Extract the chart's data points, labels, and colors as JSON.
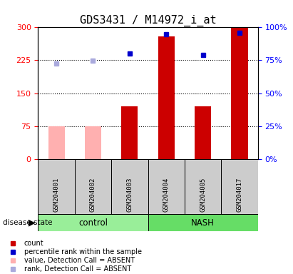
{
  "title": "GDS3431 / M14972_i_at",
  "samples": [
    "GSM204001",
    "GSM204002",
    "GSM204003",
    "GSM204004",
    "GSM204005",
    "GSM204017"
  ],
  "groups": [
    "control",
    "control",
    "control",
    "NASH",
    "NASH",
    "NASH"
  ],
  "count_values": [
    null,
    null,
    120,
    280,
    120,
    300
  ],
  "count_absent_values": [
    75,
    75,
    null,
    null,
    null,
    null
  ],
  "percentile_rank": [
    null,
    null,
    240,
    285,
    237,
    287
  ],
  "rank_absent": [
    218,
    224,
    null,
    null,
    null,
    null
  ],
  "ylim_left": [
    0,
    300
  ],
  "ylim_right": [
    0,
    100
  ],
  "yticks_left": [
    0,
    75,
    150,
    225,
    300
  ],
  "yticks_right": [
    0,
    25,
    50,
    75,
    100
  ],
  "ytick_labels_right": [
    "0%",
    "25%",
    "50%",
    "75%",
    "100%"
  ],
  "control_color": "#99EE99",
  "nash_color": "#66DD66",
  "sample_bg_color": "#CCCCCC",
  "red_bar_color": "#CC0000",
  "pink_bar_color": "#FFB0B0",
  "blue_square_color": "#0000CC",
  "light_blue_color": "#AAAADD",
  "tick_fontsize": 8,
  "title_fontsize": 11
}
